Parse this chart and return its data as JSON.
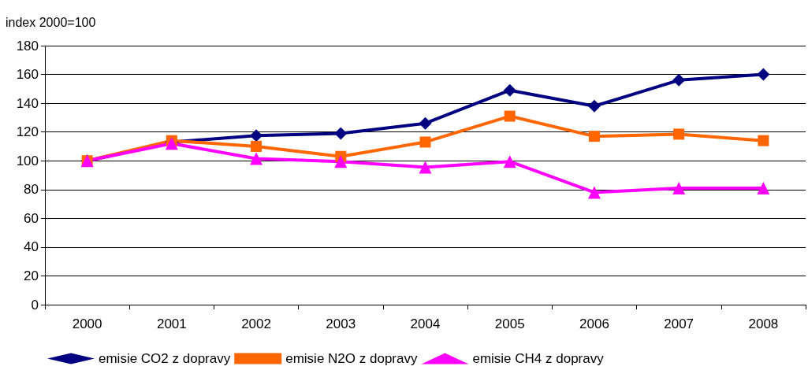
{
  "chart_data": {
    "type": "line",
    "ylabel": "index 2000=100",
    "categories": [
      "2000",
      "2001",
      "2002",
      "2003",
      "2004",
      "2005",
      "2006",
      "2007",
      "2008"
    ],
    "series": [
      {
        "name": "emisie CO2 z dopravy",
        "color": "#000080",
        "marker": "diamond",
        "values": [
          100,
          113,
          117.5,
          119,
          126,
          149,
          138,
          156,
          160
        ]
      },
      {
        "name": "emisie N2O z dopravy",
        "color": "#ff6600",
        "marker": "square",
        "values": [
          100,
          114,
          110,
          103,
          113,
          131,
          117,
          118.5,
          114
        ]
      },
      {
        "name": "emisie CH4 z dopravy",
        "color": "#ff00ff",
        "marker": "triangle",
        "values": [
          100,
          112,
          101.5,
          99.5,
          95.5,
          99.5,
          78,
          81,
          81
        ]
      }
    ],
    "ylim": [
      0,
      180
    ],
    "yticks": [
      0,
      20,
      40,
      60,
      80,
      100,
      120,
      140,
      160,
      180
    ],
    "grid": "y",
    "legend": "bottom left",
    "line_style": "solid"
  }
}
